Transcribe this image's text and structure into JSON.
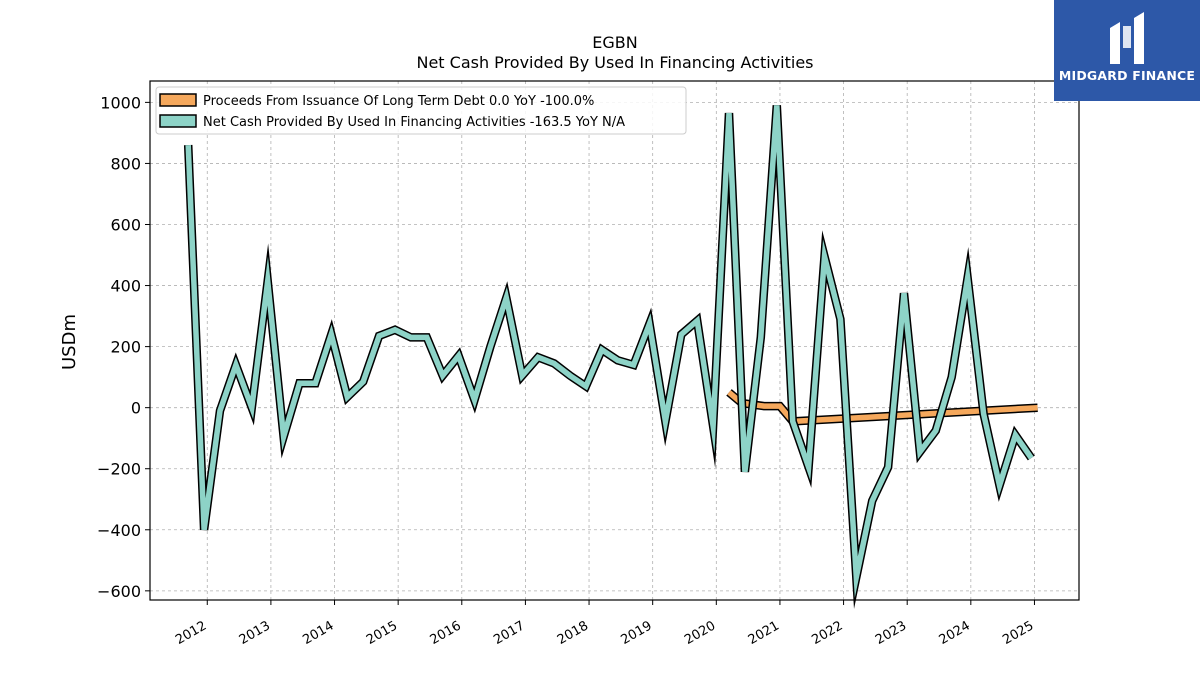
{
  "logo": {
    "text": "MIDGARD FINANCE"
  },
  "chart_data": {
    "type": "line",
    "title": "EGBN",
    "subtitle": "Net Cash Provided By Used In Financing Activities",
    "ylabel": "USDm",
    "xlabel": "",
    "ylim": [
      -630,
      1070
    ],
    "yticks": [
      1000,
      800,
      600,
      400,
      200,
      0,
      -200,
      -400,
      -600
    ],
    "ytick_labels": [
      "1000",
      "800",
      "600",
      "400",
      "200",
      "0",
      "−200",
      "−400",
      "−600"
    ],
    "xlim": [
      2011.1,
      2025.7
    ],
    "xticks": [
      2012,
      2013,
      2014,
      2015,
      2016,
      2017,
      2018,
      2019,
      2020,
      2021,
      2022,
      2023,
      2024,
      2025
    ],
    "xtick_labels": [
      "2012",
      "2013",
      "2014",
      "2015",
      "2016",
      "2017",
      "2018",
      "2019",
      "2020",
      "2021",
      "2022",
      "2023",
      "2024",
      "2025"
    ],
    "grid": true,
    "legend_position": "top-left",
    "series": [
      {
        "name": "Proceeds From Issuance Of Long Term Debt",
        "legend_label": "Proceeds From Issuance Of Long Term Debt  0.0 YoY -100.0%",
        "color": "#f5a85c",
        "x": [
          2020.2,
          2020.4,
          2020.75,
          2021.0,
          2021.2,
          2025.05
        ],
        "y": [
          50,
          15,
          5,
          5,
          -45,
          0
        ]
      },
      {
        "name": "Net Cash Provided By Used In Financing Activities",
        "legend_label": "Net Cash Provided By Used In Financing Activities  -163.5 YoY N/A",
        "color": "#8dd3c7",
        "x": [
          2011.7,
          2011.95,
          2012.2,
          2012.45,
          2012.7,
          2012.95,
          2013.2,
          2013.45,
          2013.7,
          2013.95,
          2014.2,
          2014.45,
          2014.7,
          2014.95,
          2015.2,
          2015.45,
          2015.7,
          2015.95,
          2016.2,
          2016.45,
          2016.7,
          2016.95,
          2017.2,
          2017.45,
          2017.7,
          2017.95,
          2018.2,
          2018.45,
          2018.7,
          2018.95,
          2019.2,
          2019.45,
          2019.7,
          2019.95,
          2020.2,
          2020.45,
          2020.7,
          2020.95,
          2021.2,
          2021.45,
          2021.7,
          2021.95,
          2022.2,
          2022.45,
          2022.7,
          2022.95,
          2023.2,
          2023.45,
          2023.7,
          2023.95,
          2024.2,
          2024.45,
          2024.7,
          2024.95
        ],
        "y": [
          860,
          -400,
          -10,
          140,
          0,
          415,
          -95,
          80,
          80,
          240,
          35,
          85,
          235,
          255,
          230,
          230,
          105,
          170,
          25,
          200,
          360,
          105,
          165,
          145,
          105,
          70,
          190,
          155,
          140,
          275,
          -45,
          240,
          285,
          -60,
          965,
          -210,
          230,
          990,
          -45,
          -195,
          495,
          290,
          -555,
          -305,
          -195,
          375,
          -145,
          -75,
          100,
          425,
          -20,
          -255,
          -90,
          -165
        ]
      }
    ]
  }
}
